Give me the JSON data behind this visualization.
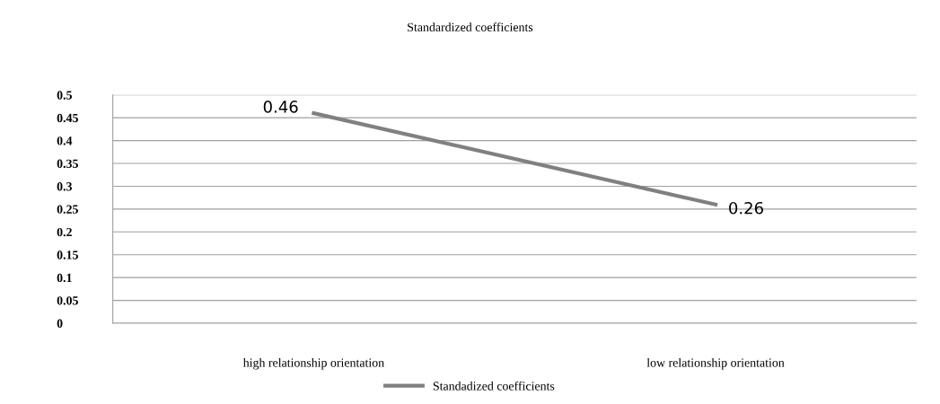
{
  "chart_data": {
    "type": "line",
    "title": "Standardized coefficients",
    "categories": [
      "high relationship orientation",
      "low relationship orientation"
    ],
    "series": [
      {
        "name": "Standadized coefficients",
        "color": "#808080",
        "values": [
          0.46,
          0.26
        ]
      }
    ],
    "ylim": [
      0,
      0.5
    ],
    "yticks": [
      0,
      0.05,
      0.1,
      0.15,
      0.2,
      0.25,
      0.3,
      0.35,
      0.4,
      0.45,
      0.5
    ],
    "grid": "y",
    "legend": "bottom",
    "data_labels": true,
    "marker": "none",
    "line_style": "solid"
  }
}
